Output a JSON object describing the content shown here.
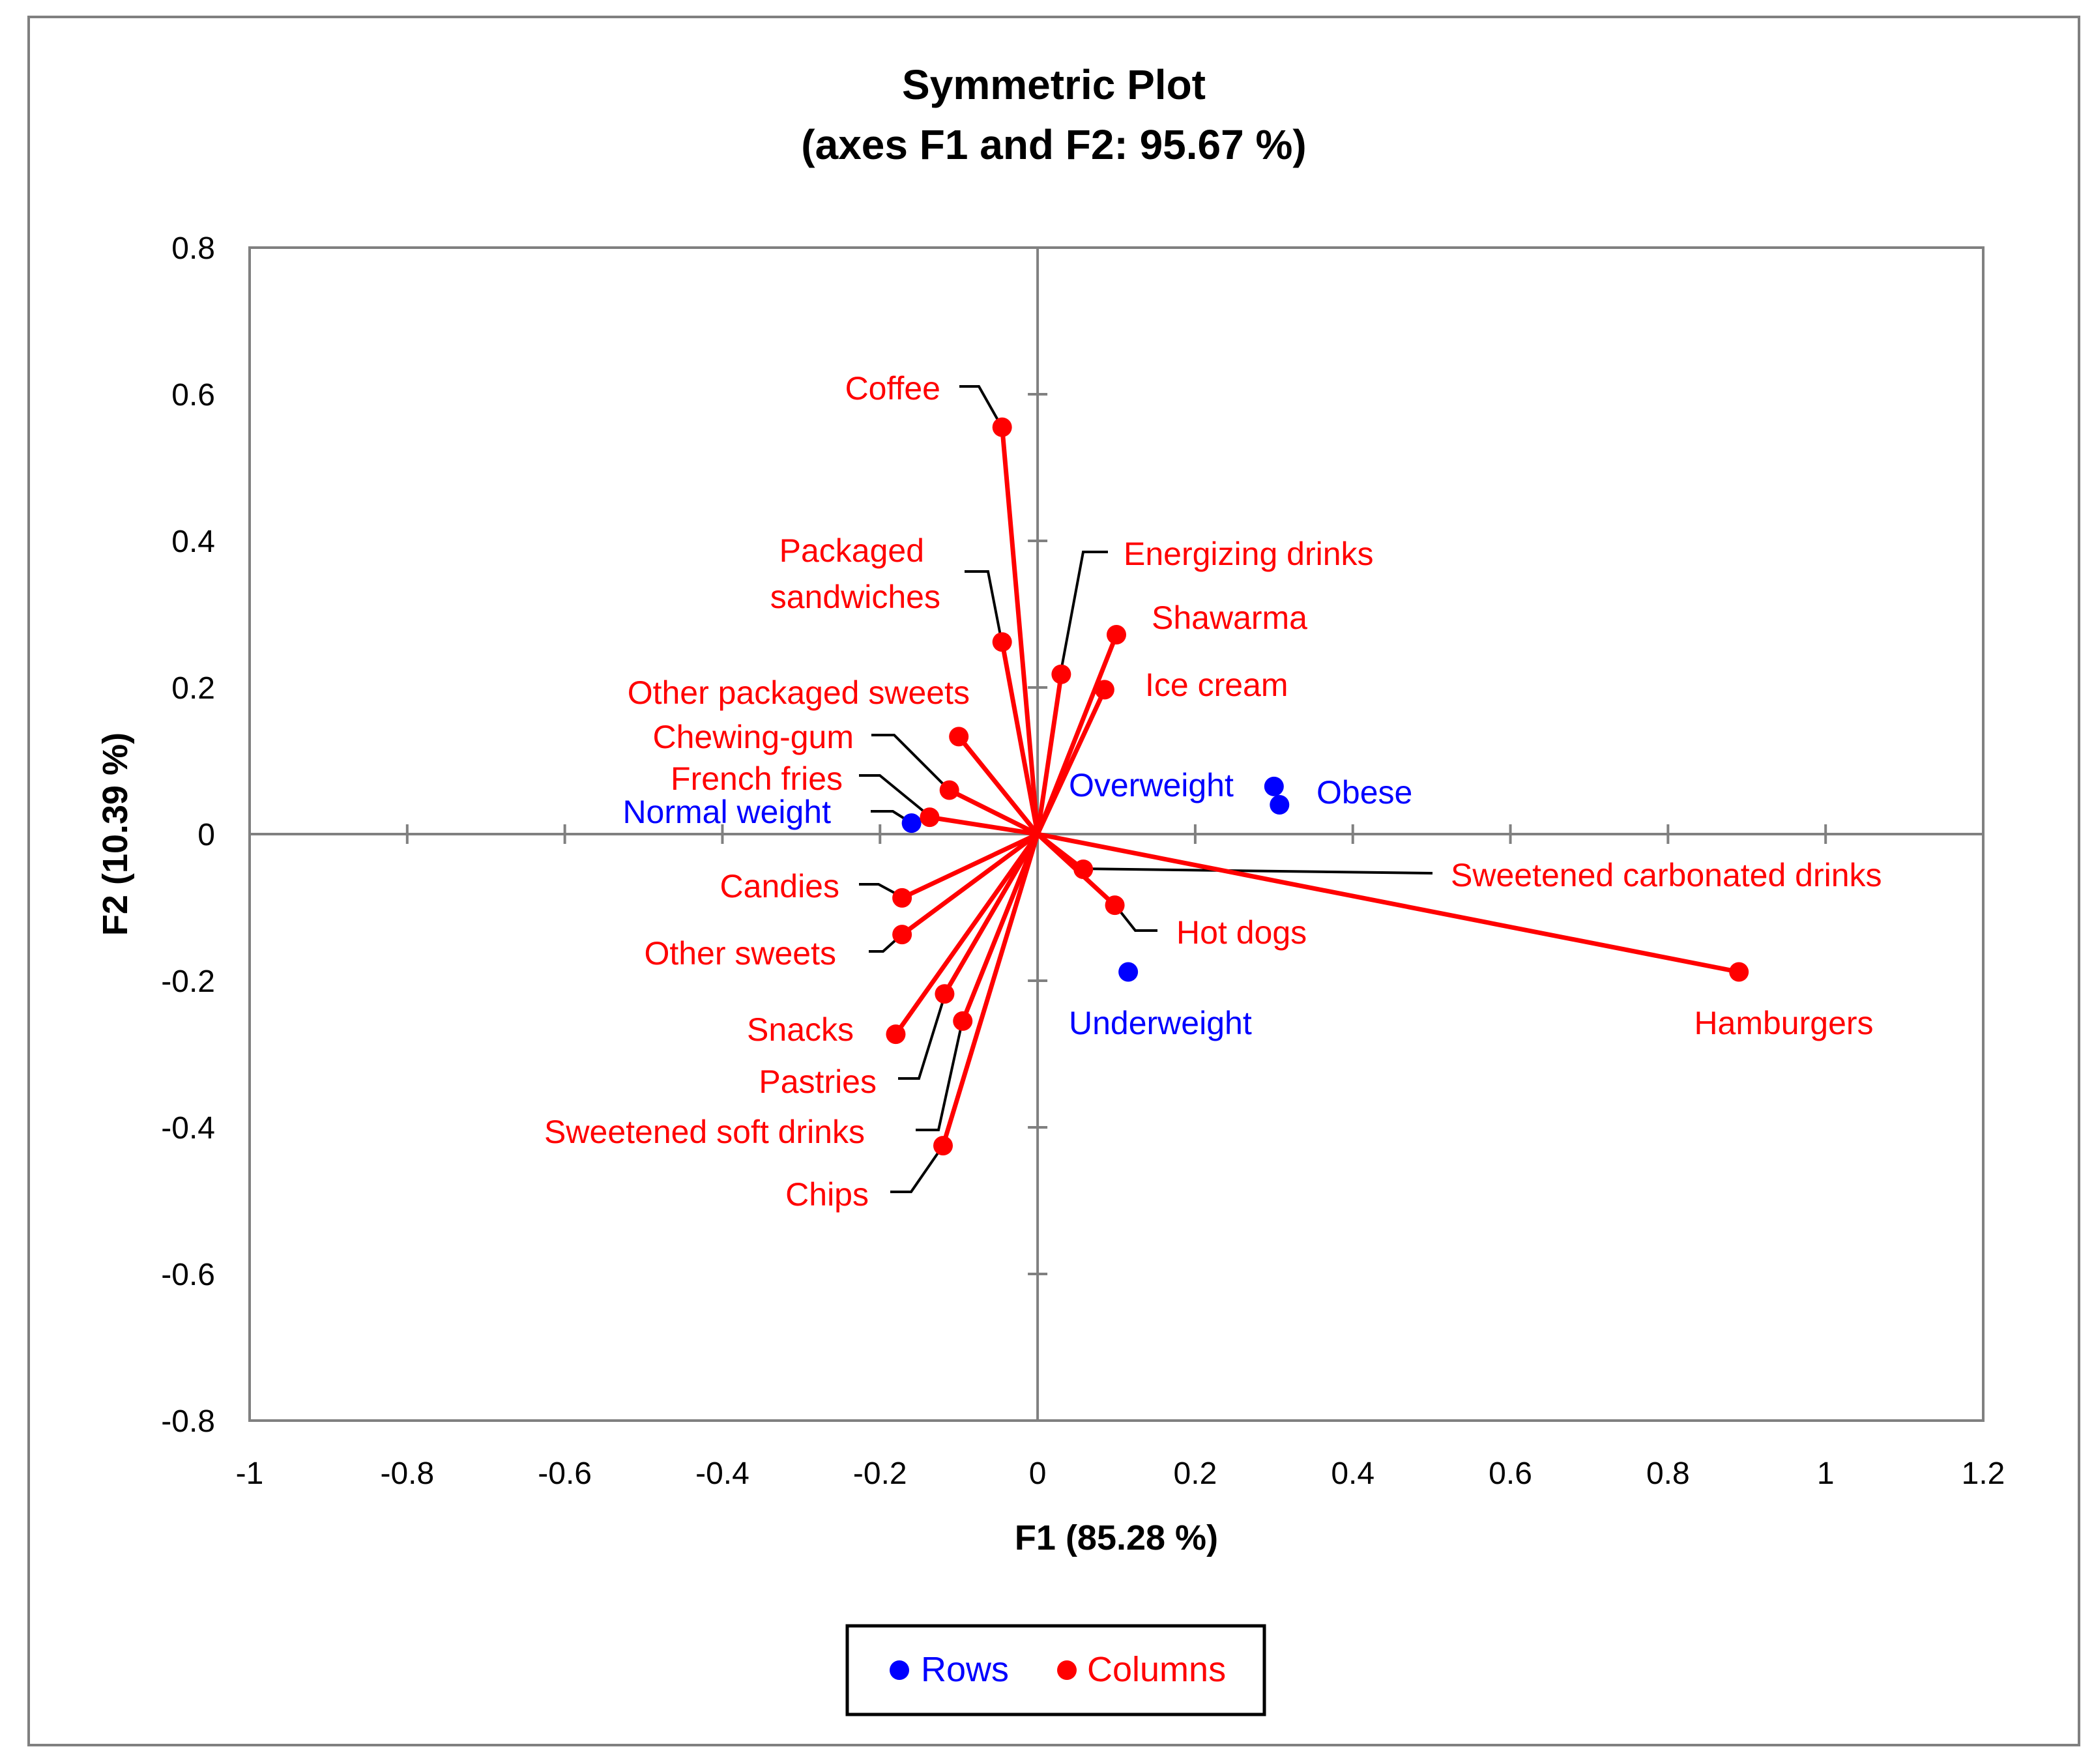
{
  "chart_data": {
    "type": "scatter",
    "title": "Symmetric Plot",
    "subtitle": "(axes F1 and F2: 95.67 %)",
    "xlabel": "F1 (85.28 %)",
    "ylabel": "F2 (10.39 %)",
    "xlim": [
      -1,
      1.2
    ],
    "ylim": [
      -0.8,
      0.8
    ],
    "xticks": [
      -1,
      -0.8,
      -0.6,
      -0.4,
      -0.2,
      0,
      0.2,
      0.4,
      0.6,
      0.8,
      1,
      1.2
    ],
    "yticks": [
      -0.8,
      -0.6,
      -0.4,
      -0.2,
      0,
      0.2,
      0.4,
      0.6,
      0.8
    ],
    "xtick_labels": [
      "-1",
      "-0.8",
      "-0.6",
      "-0.4",
      "-0.2",
      "0",
      "0.2",
      "0.4",
      "0.6",
      "0.8",
      "1",
      "1.2"
    ],
    "ytick_labels": [
      "-0.8",
      "-0.6",
      "-0.4",
      "-0.2",
      "0",
      "0.2",
      "0.4",
      "0.6",
      "0.8"
    ],
    "grid": false,
    "legend_position": "bottom-center",
    "legend": [
      {
        "name": "Rows",
        "color": "#0000ff"
      },
      {
        "name": "Columns",
        "color": "#ff0000"
      }
    ],
    "series": [
      {
        "name": "Rows",
        "color": "#0000ff",
        "vectors": false,
        "points": [
          {
            "label": "Normal weight",
            "x": -0.16,
            "y": 0.015
          },
          {
            "label": "Overweight",
            "x": 0.3,
            "y": 0.065
          },
          {
            "label": "Obese",
            "x": 0.307,
            "y": 0.04
          },
          {
            "label": "Underweight",
            "x": 0.115,
            "y": -0.188
          }
        ]
      },
      {
        "name": "Columns",
        "color": "#ff0000",
        "vectors": true,
        "points": [
          {
            "label": "Coffee",
            "x": -0.045,
            "y": 0.555
          },
          {
            "label": "Packaged sandwiches",
            "x": -0.045,
            "y": 0.262
          },
          {
            "label": "Energizing drinks",
            "x": 0.03,
            "y": 0.218
          },
          {
            "label": "Shawarma",
            "x": 0.1,
            "y": 0.272
          },
          {
            "label": "Ice cream",
            "x": 0.085,
            "y": 0.197
          },
          {
            "label": "Other packaged sweets",
            "x": -0.1,
            "y": 0.133
          },
          {
            "label": "Chewing-gum",
            "x": -0.112,
            "y": 0.06
          },
          {
            "label": "French fries",
            "x": -0.137,
            "y": 0.023
          },
          {
            "label": "Candies",
            "x": -0.172,
            "y": -0.087
          },
          {
            "label": "Other sweets",
            "x": -0.172,
            "y": -0.137
          },
          {
            "label": "Snacks",
            "x": -0.18,
            "y": -0.273
          },
          {
            "label": "Pastries",
            "x": -0.118,
            "y": -0.218
          },
          {
            "label": "Sweetened soft drinks",
            "x": -0.095,
            "y": -0.255
          },
          {
            "label": "Chips",
            "x": -0.12,
            "y": -0.425
          },
          {
            "label": "Sweetened carbonated drinks",
            "x": 0.058,
            "y": -0.048
          },
          {
            "label": "Hot dogs",
            "x": 0.098,
            "y": -0.097
          },
          {
            "label": "Hamburgers",
            "x": 0.89,
            "y": -0.188
          }
        ]
      }
    ]
  }
}
